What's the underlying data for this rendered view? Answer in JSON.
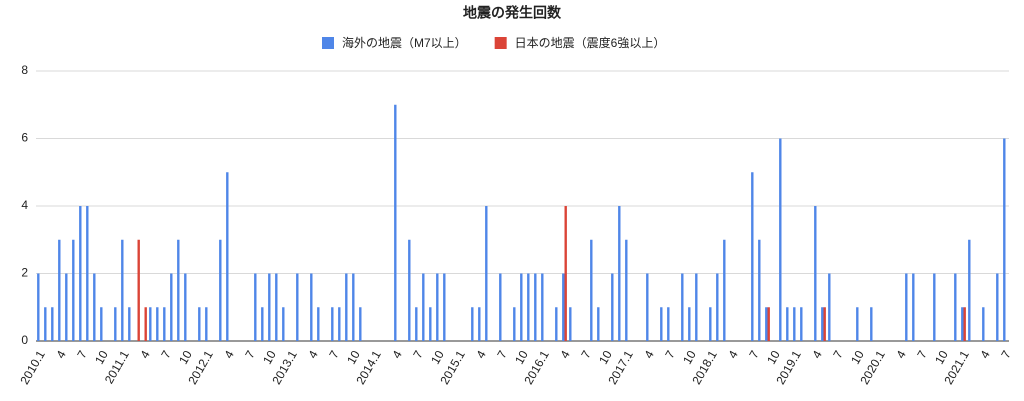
{
  "chart_data": {
    "type": "bar",
    "title": "地震の発生回数",
    "categories": [
      "2010.1",
      null,
      null,
      "4",
      null,
      null,
      "7",
      null,
      null,
      "10",
      null,
      null,
      "2011.1",
      null,
      null,
      "4",
      null,
      null,
      "7",
      null,
      null,
      "10",
      null,
      null,
      "2012.1",
      null,
      null,
      "4",
      null,
      null,
      "7",
      null,
      null,
      "10",
      null,
      null,
      "2013.1",
      null,
      null,
      "4",
      null,
      null,
      "7",
      null,
      null,
      "10",
      null,
      null,
      "2014.1",
      null,
      null,
      "4",
      null,
      null,
      "7",
      null,
      null,
      "10",
      null,
      null,
      "2015.1",
      null,
      null,
      "4",
      null,
      null,
      "7",
      null,
      null,
      "10",
      null,
      null,
      "2016.1",
      null,
      null,
      "4",
      null,
      null,
      "7",
      null,
      null,
      "10",
      null,
      null,
      "2017.1",
      null,
      null,
      "4",
      null,
      null,
      "7",
      null,
      null,
      "10",
      null,
      null,
      "2018.1",
      null,
      null,
      "4",
      null,
      null,
      "7",
      null,
      null,
      "10",
      null,
      null,
      "2019.1",
      null,
      null,
      "4",
      null,
      null,
      "7",
      null,
      null,
      "10",
      null,
      null,
      "2020.1",
      null,
      null,
      "4",
      null,
      null,
      "7",
      null,
      null,
      "10",
      null,
      null,
      "2021.1",
      null,
      null,
      "4",
      null,
      null,
      "7"
    ],
    "series": [
      {
        "name": "海外の地震（M7以上）",
        "color": "#4f86e8",
        "values": [
          2,
          1,
          1,
          3,
          2,
          3,
          4,
          4,
          2,
          1,
          0,
          1,
          3,
          1,
          0,
          0,
          1,
          1,
          1,
          2,
          3,
          2,
          0,
          1,
          1,
          0,
          3,
          5,
          0,
          0,
          0,
          2,
          1,
          2,
          2,
          1,
          0,
          2,
          0,
          2,
          1,
          0,
          1,
          1,
          2,
          2,
          1,
          0,
          0,
          0,
          0,
          7,
          0,
          3,
          1,
          2,
          1,
          2,
          2,
          0,
          0,
          0,
          1,
          1,
          4,
          0,
          2,
          0,
          1,
          2,
          2,
          2,
          2,
          0,
          1,
          2,
          1,
          0,
          0,
          3,
          1,
          0,
          2,
          4,
          3,
          0,
          0,
          2,
          0,
          1,
          1,
          0,
          2,
          1,
          2,
          0,
          1,
          2,
          3,
          0,
          0,
          0,
          5,
          3,
          1,
          0,
          6,
          1,
          1,
          1,
          0,
          4,
          1,
          2,
          0,
          0,
          0,
          1,
          0,
          1,
          0,
          0,
          0,
          0,
          2,
          2,
          0,
          0,
          2,
          0,
          0,
          2,
          1,
          3,
          0,
          1,
          0,
          2,
          6
        ]
      },
      {
        "name": "日本の地震（震度6強以上）",
        "color": "#db4437",
        "values": [
          0,
          0,
          0,
          0,
          0,
          0,
          0,
          0,
          0,
          0,
          0,
          0,
          0,
          0,
          3,
          1,
          0,
          0,
          0,
          0,
          0,
          0,
          0,
          0,
          0,
          0,
          0,
          0,
          0,
          0,
          0,
          0,
          0,
          0,
          0,
          0,
          0,
          0,
          0,
          0,
          0,
          0,
          0,
          0,
          0,
          0,
          0,
          0,
          0,
          0,
          0,
          0,
          0,
          0,
          0,
          0,
          0,
          0,
          0,
          0,
          0,
          0,
          0,
          0,
          0,
          0,
          0,
          0,
          0,
          0,
          0,
          0,
          0,
          0,
          0,
          4,
          0,
          0,
          0,
          0,
          0,
          0,
          0,
          0,
          0,
          0,
          0,
          0,
          0,
          0,
          0,
          0,
          0,
          0,
          0,
          0,
          0,
          0,
          0,
          0,
          0,
          0,
          0,
          0,
          1,
          0,
          0,
          0,
          0,
          0,
          0,
          0,
          1,
          0,
          0,
          0,
          0,
          0,
          0,
          0,
          0,
          0,
          0,
          0,
          0,
          0,
          0,
          0,
          0,
          0,
          0,
          0,
          1,
          0,
          0,
          0,
          0,
          0,
          0
        ]
      }
    ],
    "ylim": [
      0,
      8
    ],
    "yticks": [
      0,
      2,
      4,
      6,
      8
    ],
    "grid": true,
    "legend": "top"
  }
}
